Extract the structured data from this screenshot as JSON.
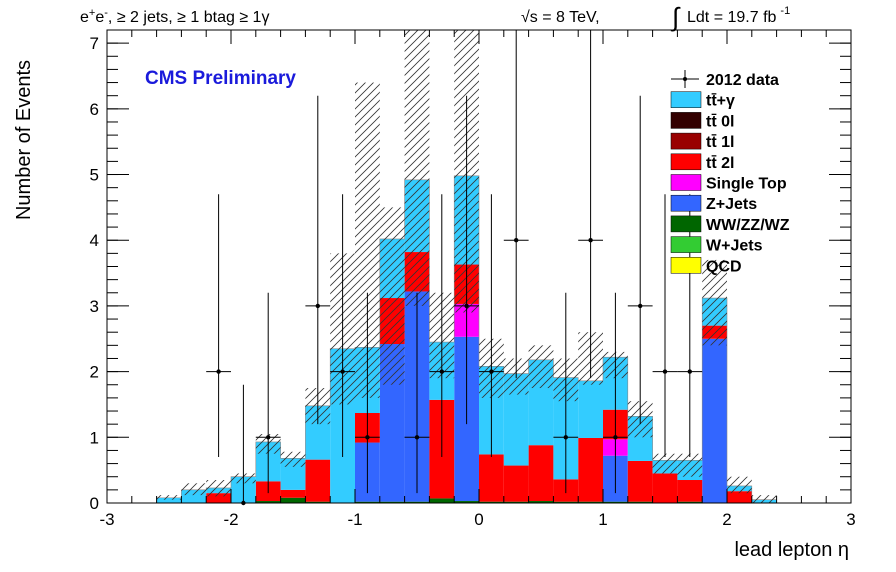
{
  "header": {
    "left_prefix": "e",
    "left_sup1": "+",
    "left_mid": "e",
    "left_sup2": "-",
    "left_rest": ", ≥ 2 jets, ≥ 1 btag ≥ 1γ",
    "energy": "√s = 8 TeV,",
    "lumi_int": "∫",
    "lumi_text": "Ldt = 19.7 fb",
    "lumi_sup": "-1"
  },
  "chart_data": {
    "type": "bar",
    "subtype": "stacked-histogram",
    "xlabel": "lead lepton η",
    "ylabel": "Number of Events",
    "xlim": [
      -3,
      3
    ],
    "ylim": [
      0,
      7.2
    ],
    "x_ticks": [
      -3,
      -2,
      -1,
      0,
      1,
      2,
      3
    ],
    "y_ticks": [
      0,
      1,
      2,
      3,
      4,
      5,
      6,
      7
    ],
    "annotation": "CMS Preliminary",
    "legend_position": "top-right",
    "bin_edges": [
      -2.6,
      -2.4,
      -2.2,
      -2.0,
      -1.8,
      -1.6,
      -1.4,
      -1.2,
      -1.0,
      -0.8,
      -0.6,
      -0.4,
      -0.2,
      0.0,
      0.2,
      0.4,
      0.6,
      0.8,
      1.0,
      1.2,
      1.4,
      1.6,
      1.8,
      2.0,
      2.2,
      2.4
    ],
    "series": [
      {
        "name": "QCD",
        "color": "#ffff00",
        "values": [
          0,
          0,
          0,
          0,
          0,
          0,
          0,
          0,
          0,
          0,
          0,
          0,
          0,
          0,
          0,
          0,
          0,
          0,
          0,
          0,
          0,
          0,
          0,
          0,
          0
        ]
      },
      {
        "name": "W+Jets",
        "color": "#33cc33",
        "values": [
          0,
          0,
          0,
          0,
          0,
          0,
          0,
          0,
          0,
          0,
          0,
          0,
          0,
          0,
          0,
          0,
          0,
          0,
          0,
          0,
          0,
          0,
          0,
          0,
          0
        ]
      },
      {
        "name": "WW/ZZ/WZ",
        "color": "#006600",
        "values": [
          0,
          0,
          0,
          0,
          0.03,
          0.08,
          0.02,
          0,
          0.02,
          0.02,
          0.02,
          0.07,
          0.03,
          0.02,
          0.02,
          0.03,
          0.02,
          0.02,
          0.02,
          0.02,
          0,
          0.02,
          0,
          0,
          0
        ]
      },
      {
        "name": "Z+Jets",
        "color": "#3366ff",
        "values": [
          0,
          0,
          0,
          0,
          0,
          0,
          0,
          0,
          0.9,
          2.4,
          3.2,
          0,
          2.5,
          0,
          0,
          0,
          0,
          0,
          0.7,
          0,
          0,
          0,
          2.5,
          0,
          0
        ]
      },
      {
        "name": "Single Top",
        "color": "#ff00ff",
        "values": [
          0,
          0,
          0,
          0,
          0,
          0,
          0,
          0,
          0,
          0,
          0,
          0,
          0.5,
          0,
          0,
          0,
          0,
          0,
          0.25,
          0,
          0,
          0,
          0,
          0,
          0
        ]
      },
      {
        "name": "tt̄ 2l",
        "color": "#ff0000",
        "values": [
          0,
          0,
          0.15,
          0,
          0.3,
          0.12,
          0.64,
          0,
          0.45,
          0.7,
          0.6,
          1.5,
          0.6,
          0.72,
          0.55,
          0.85,
          0.34,
          0.97,
          0.45,
          0.62,
          0.45,
          0.33,
          0.2,
          0.18,
          0
        ]
      },
      {
        "name": "tt̄ 1l",
        "color": "#990000",
        "values": [
          0,
          0,
          0,
          0,
          0,
          0,
          0,
          0,
          0,
          0,
          0,
          0,
          0,
          0,
          0,
          0,
          0,
          0,
          0,
          0,
          0,
          0,
          0,
          0,
          0
        ]
      },
      {
        "name": "tt̄ 0l",
        "color": "#330000",
        "values": [
          0,
          0,
          0,
          0,
          0,
          0,
          0,
          0,
          0,
          0,
          0,
          0,
          0,
          0,
          0,
          0,
          0,
          0,
          0,
          0,
          0,
          0,
          0,
          0,
          0
        ]
      },
      {
        "name": "tt̄+γ",
        "color": "#33ccff",
        "values": [
          0.08,
          0.2,
          0.08,
          0.4,
          0.6,
          0.48,
          0.82,
          2.35,
          1.0,
          0.9,
          1.1,
          0.88,
          1.35,
          1.34,
          1.4,
          1.3,
          1.55,
          0.87,
          0.8,
          0.68,
          0.2,
          0.3,
          0.42,
          0.08,
          0.05
        ]
      }
    ],
    "uncertainty_top": [
      0.12,
      0.3,
      0.35,
      0.45,
      1.05,
      0.78,
      1.75,
      3.8,
      6.4,
      4.5,
      7.2,
      3.2,
      7.2,
      2.5,
      2.2,
      2.4,
      2.2,
      2.6,
      2.3,
      1.55,
      0.75,
      0.75,
      3.7,
      0.4,
      0.12
    ],
    "uncertainty_bottom": [
      0.05,
      0.12,
      0.1,
      0.3,
      0.75,
      0.55,
      1.2,
      1.5,
      1.6,
      1.8,
      3.0,
      1.9,
      2.9,
      1.6,
      1.65,
      1.75,
      1.55,
      1.8,
      1.9,
      1.0,
      0.45,
      0.4,
      2.4,
      0.15,
      0
    ],
    "data_points": [
      {
        "x": -2.1,
        "y": 2,
        "err_lo": 1.3,
        "err_hi": 2.7
      },
      {
        "x": -1.9,
        "y": 0,
        "err_lo": 0,
        "err_hi": 1.8
      },
      {
        "x": -1.7,
        "y": 1,
        "err_lo": 0.85,
        "err_hi": 2.2
      },
      {
        "x": -1.3,
        "y": 3,
        "err_lo": 1.8,
        "err_hi": 3.2
      },
      {
        "x": -1.1,
        "y": 2,
        "err_lo": 1.3,
        "err_hi": 2.7
      },
      {
        "x": -0.9,
        "y": 1,
        "err_lo": 0.85,
        "err_hi": 2.2
      },
      {
        "x": -0.5,
        "y": 1,
        "err_lo": 0.85,
        "err_hi": 2.2
      },
      {
        "x": -0.3,
        "y": 2,
        "err_lo": 1.3,
        "err_hi": 2.7
      },
      {
        "x": -0.1,
        "y": 3,
        "err_lo": 1.8,
        "err_hi": 3.2
      },
      {
        "x": 0.1,
        "y": 2,
        "err_lo": 1.3,
        "err_hi": 2.7
      },
      {
        "x": 0.3,
        "y": 4,
        "err_lo": 2.1,
        "err_hi": 3.2
      },
      {
        "x": 0.7,
        "y": 1,
        "err_lo": 0.85,
        "err_hi": 2.2
      },
      {
        "x": 0.9,
        "y": 4,
        "err_lo": 2.1,
        "err_hi": 3.2
      },
      {
        "x": 1.1,
        "y": 1,
        "err_lo": 0.85,
        "err_hi": 2.2
      },
      {
        "x": 1.3,
        "y": 3,
        "err_lo": 1.8,
        "err_hi": 3.2
      },
      {
        "x": 1.5,
        "y": 2,
        "err_lo": 1.3,
        "err_hi": 2.7
      },
      {
        "x": 1.7,
        "y": 2,
        "err_lo": 1.3,
        "err_hi": 2.7
      }
    ],
    "legend": [
      {
        "label": "2012 data",
        "kind": "data",
        "color": "#000000"
      },
      {
        "label": "tt̄+γ",
        "kind": "box",
        "color": "#33ccff"
      },
      {
        "label": "tt̄ 0l",
        "kind": "box",
        "color": "#330000"
      },
      {
        "label": "tt̄ 1l",
        "kind": "box",
        "color": "#990000"
      },
      {
        "label": "tt̄ 2l",
        "kind": "box",
        "color": "#ff0000"
      },
      {
        "label": "Single Top",
        "kind": "box",
        "color": "#ff00ff"
      },
      {
        "label": "Z+Jets",
        "kind": "box",
        "color": "#3366ff"
      },
      {
        "label": "WW/ZZ/WZ",
        "kind": "box",
        "color": "#006600"
      },
      {
        "label": "W+Jets",
        "kind": "box",
        "color": "#33cc33"
      },
      {
        "label": "QCD",
        "kind": "box",
        "color": "#ffff00"
      }
    ]
  }
}
